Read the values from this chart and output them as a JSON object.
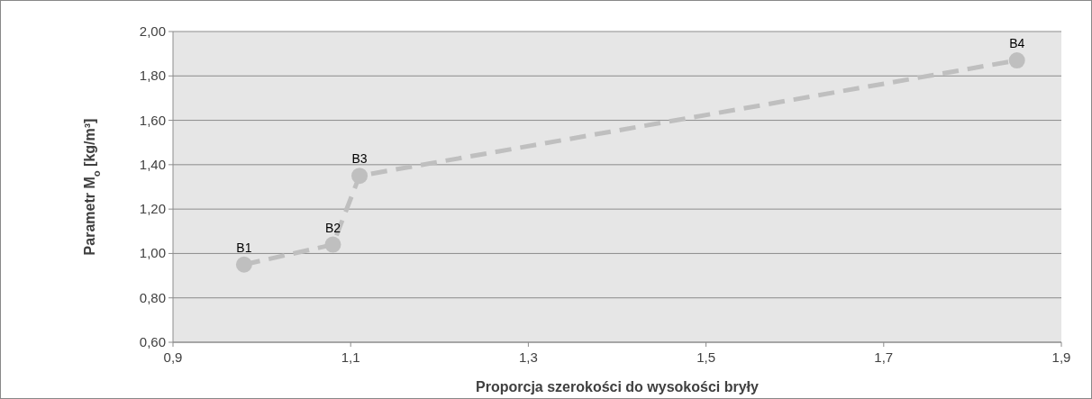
{
  "chart_data": {
    "type": "line",
    "xlabel": "Proporcja szerokości do wysokości bryły",
    "ylabel": "Parametr M$_{o}$ [kg/m³]",
    "x": [
      0.98,
      1.08,
      1.11,
      1.85
    ],
    "series": [
      {
        "color": "#bfbfbf",
        "values": [
          0.95,
          1.04,
          1.35,
          1.87
        ]
      }
    ],
    "xlim": [
      0.9,
      1.9
    ],
    "xticks": [
      {
        "value": 0.9,
        "label": "0,9"
      },
      {
        "value": 1.1,
        "label": "1,1"
      },
      {
        "value": 1.3,
        "label": "1,3"
      },
      {
        "value": 1.5,
        "label": "1,5"
      },
      {
        "value": 1.7,
        "label": "1,7"
      },
      {
        "value": 1.9,
        "label": "1,9"
      }
    ],
    "ylim": [
      0.6,
      2.0
    ],
    "yticks": [
      {
        "value": 0.6,
        "label": "0,60"
      },
      {
        "value": 0.8,
        "label": "0,80"
      },
      {
        "value": 1.0,
        "label": "1,00"
      },
      {
        "value": 1.2,
        "label": "1,20"
      },
      {
        "value": 1.4,
        "label": "1,40"
      },
      {
        "value": 1.6,
        "label": "1,60"
      },
      {
        "value": 1.8,
        "label": "1,80"
      },
      {
        "value": 2.0,
        "label": "2,00"
      }
    ],
    "grid": "y",
    "marker": "circle",
    "line_style": "dashed",
    "annotations": [
      {
        "text": "B1",
        "x": 0.98,
        "y": 0.95
      },
      {
        "text": "B2",
        "x": 1.08,
        "y": 1.04
      },
      {
        "text": "B3",
        "x": 1.11,
        "y": 1.35
      },
      {
        "text": "B4",
        "x": 1.85,
        "y": 1.87
      }
    ]
  }
}
